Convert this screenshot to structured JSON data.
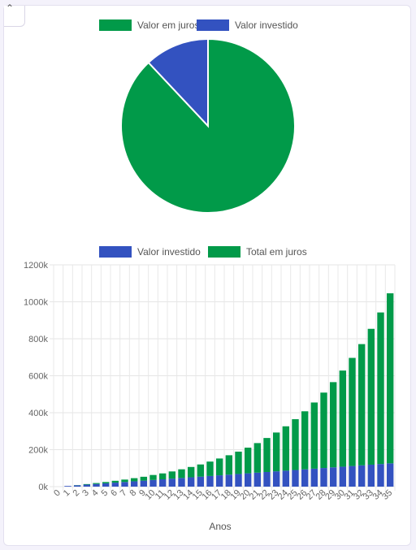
{
  "colors": {
    "interest": "#019a49",
    "invested": "#3352c0"
  },
  "pie_legend": [
    {
      "label": "Valor em juros",
      "color": "#019a49"
    },
    {
      "label": "Valor investido",
      "color": "#3352c0"
    }
  ],
  "bar_legend": [
    {
      "label": "Valor investido",
      "color": "#3352c0"
    },
    {
      "label": "Total em juros",
      "color": "#019a49"
    }
  ],
  "chart_data": [
    {
      "type": "pie",
      "labels": [
        "Valor em juros",
        "Valor investido"
      ],
      "values": [
        88,
        12
      ],
      "colors": [
        "#019a49",
        "#3352c0"
      ],
      "legend": "top"
    },
    {
      "type": "bar",
      "stacked": true,
      "categories": [
        "0",
        "1",
        "2",
        "3",
        "4",
        "5",
        "6",
        "7",
        "8",
        "9",
        "10",
        "11",
        "12",
        "13",
        "14",
        "15",
        "16",
        "17",
        "18",
        "19",
        "20",
        "21",
        "22",
        "23",
        "24",
        "25",
        "26",
        "27",
        "28",
        "29",
        "30",
        "31",
        "32",
        "33",
        "34",
        "35"
      ],
      "series": [
        {
          "name": "Valor investido",
          "color": "#3352c0",
          "values": [
            0,
            3600,
            7200,
            10800,
            14400,
            18000,
            21600,
            25200,
            28800,
            32400,
            36000,
            39600,
            43200,
            46800,
            50400,
            54000,
            57600,
            61200,
            64800,
            68400,
            72000,
            75600,
            79200,
            82800,
            86400,
            90000,
            93600,
            97200,
            100800,
            104400,
            108000,
            111600,
            115200,
            118800,
            122400,
            126000
          ]
        },
        {
          "name": "Total em juros",
          "color": "#019a49",
          "values": [
            0,
            0,
            1000,
            3000,
            5000,
            7000,
            10000,
            13000,
            17000,
            21000,
            27000,
            32000,
            39000,
            47000,
            56000,
            66000,
            78000,
            91000,
            105000,
            121000,
            139000,
            160000,
            184000,
            210000,
            240000,
            275000,
            314000,
            358000,
            408000,
            461000,
            520000,
            585000,
            656000,
            735000,
            820000,
            920000
          ]
        }
      ],
      "xlabel": "Anos",
      "ylabel": "",
      "ylim": [
        0,
        1200000
      ],
      "yticks": [
        "0k",
        "200k",
        "400k",
        "600k",
        "800k",
        "1000k",
        "1200k"
      ],
      "grid": true,
      "legend": "top"
    }
  ]
}
